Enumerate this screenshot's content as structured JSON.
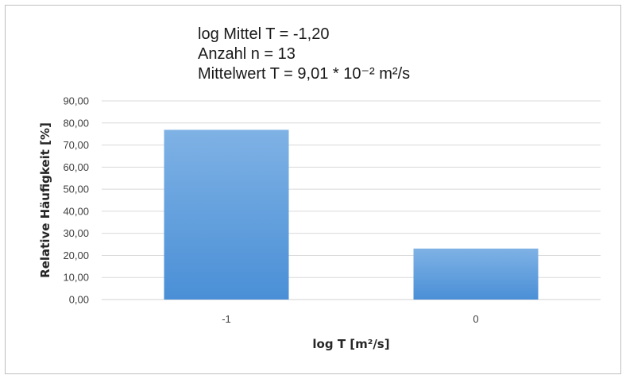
{
  "annotations": {
    "line1": "log Mittel T = -1,20",
    "line2": "Anzahl n = 13",
    "line3": "Mittelwert T = 9,01 * 10⁻² m²/s"
  },
  "colors": {
    "bar_top": "#7fb2e5",
    "bar_bottom": "#4a8fd6",
    "grid": "#d9d9d9"
  },
  "chart_data": {
    "type": "bar",
    "categories": [
      "-1",
      "0"
    ],
    "values": [
      76.9,
      23.1
    ],
    "xlabel": "log T [m²/s]",
    "ylabel": "Relative Häufigkeit [%]",
    "ylim": [
      0,
      90
    ],
    "yticks": [
      "0,00",
      "10,00",
      "20,00",
      "30,00",
      "40,00",
      "50,00",
      "60,00",
      "70,00",
      "80,00",
      "90,00"
    ],
    "grid": true,
    "legend": "none"
  }
}
